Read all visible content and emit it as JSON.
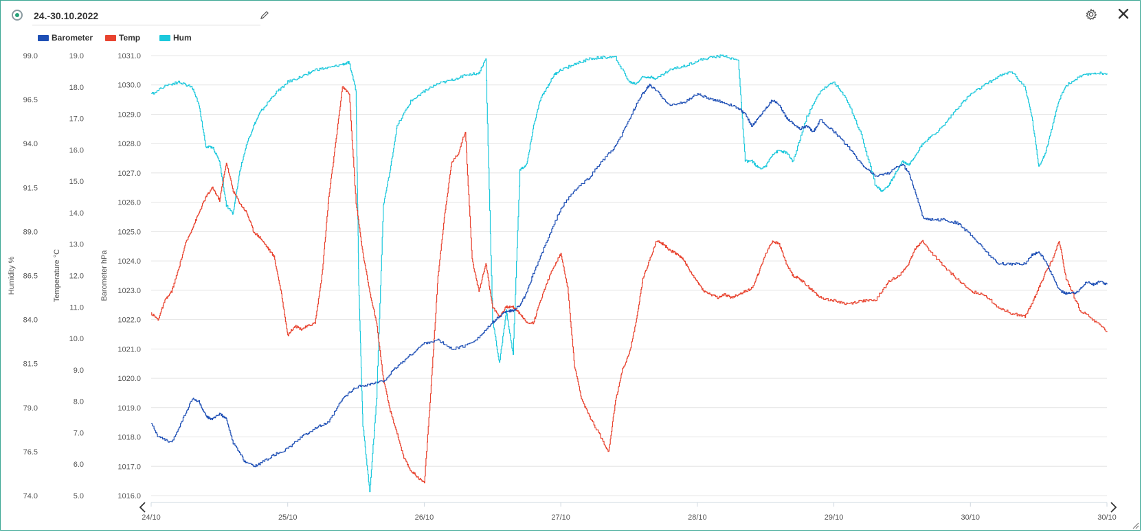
{
  "header": {
    "date_range": "24.-30.10.2022"
  },
  "icons": {
    "status": "status-dot-icon",
    "edit": "pencil-icon",
    "settings": "gear-icon",
    "close": "close-icon",
    "prev": "chevron-left-icon",
    "next": "chevron-right-icon",
    "resize": "resize-handle-icon"
  },
  "colors": {
    "frame": "#3aa693",
    "status_dot": "#27a37a",
    "barometer": "#1e4fb5",
    "temp": "#e8432f",
    "hum": "#1cc8dc",
    "grid": "#e4e4e4"
  },
  "chart_data": {
    "type": "line",
    "legend": [
      "Barometer",
      "Temp",
      "Hum"
    ],
    "legend_position": "top-left",
    "grid": true,
    "x_ticks": [
      "24/10",
      "25/10",
      "26/10",
      "27/10",
      "28/10",
      "29/10",
      "30/10",
      "30/10"
    ],
    "x_range_days": [
      0,
      7
    ],
    "axes": [
      {
        "id": "hum",
        "label": "Humidity %",
        "ylim": [
          74.0,
          99.0
        ],
        "ticks": [
          "74.0",
          "76.5",
          "79.0",
          "81.5",
          "84.0",
          "86.5",
          "89.0",
          "91.5",
          "94.0",
          "96.5",
          "99.0"
        ]
      },
      {
        "id": "temp",
        "label": "Temperature °C",
        "ylim": [
          5.0,
          19.0
        ],
        "ticks": [
          "5.0",
          "6.0",
          "7.0",
          "8.0",
          "9.0",
          "10.0",
          "11.0",
          "12.0",
          "13.0",
          "14.0",
          "15.0",
          "16.0",
          "17.0",
          "18.0",
          "19.0"
        ]
      },
      {
        "id": "baro",
        "label": "Barometer hPa",
        "ylim": [
          1016.0,
          1031.0
        ],
        "ticks": [
          "1016.0",
          "1017.0",
          "1018.0",
          "1019.0",
          "1020.0",
          "1021.0",
          "1022.0",
          "1023.0",
          "1024.0",
          "1025.0",
          "1026.0",
          "1027.0",
          "1028.0",
          "1029.0",
          "1030.0",
          "1031.0"
        ]
      }
    ],
    "series": [
      {
        "name": "Barometer",
        "axis": "baro",
        "x": [
          0,
          0.05,
          0.15,
          0.22,
          0.3,
          0.35,
          0.4,
          0.45,
          0.5,
          0.55,
          0.6,
          0.68,
          0.75,
          0.8,
          0.9,
          1.0,
          1.1,
          1.2,
          1.3,
          1.4,
          1.5,
          1.6,
          1.7,
          1.8,
          1.9,
          2.0,
          2.1,
          2.2,
          2.3,
          2.4,
          2.5,
          2.55,
          2.6,
          2.65,
          2.7,
          2.75,
          2.8,
          2.9,
          3.0,
          3.1,
          3.2,
          3.3,
          3.4,
          3.5,
          3.55,
          3.6,
          3.65,
          3.7,
          3.8,
          3.9,
          4.0,
          4.1,
          4.2,
          4.3,
          4.35,
          4.4,
          4.45,
          4.5,
          4.55,
          4.6,
          4.65,
          4.7,
          4.75,
          4.8,
          4.85,
          4.9,
          5.0,
          5.1,
          5.2,
          5.3,
          5.4,
          5.5,
          5.55,
          5.6,
          5.65,
          5.7,
          5.8,
          5.9,
          6.0,
          6.1,
          6.2,
          6.3,
          6.4,
          6.45,
          6.5,
          6.55,
          6.6,
          6.65,
          6.7,
          6.75,
          6.8,
          6.85,
          6.9,
          6.95,
          7.0
        ],
        "values": [
          1018.5,
          1018.0,
          1017.8,
          1018.5,
          1019.3,
          1019.2,
          1018.7,
          1018.6,
          1018.8,
          1018.6,
          1017.8,
          1017.2,
          1017.0,
          1017.1,
          1017.4,
          1017.6,
          1018.0,
          1018.3,
          1018.5,
          1019.3,
          1019.7,
          1019.8,
          1019.9,
          1020.4,
          1020.8,
          1021.2,
          1021.3,
          1021.0,
          1021.1,
          1021.4,
          1021.9,
          1022.1,
          1022.3,
          1022.3,
          1022.5,
          1022.9,
          1023.6,
          1024.7,
          1025.8,
          1026.4,
          1026.8,
          1027.4,
          1027.9,
          1028.8,
          1029.3,
          1029.7,
          1030.0,
          1029.8,
          1029.3,
          1029.4,
          1029.7,
          1029.5,
          1029.4,
          1029.2,
          1029.0,
          1028.6,
          1028.9,
          1029.2,
          1029.5,
          1029.3,
          1028.9,
          1028.7,
          1028.5,
          1028.6,
          1028.4,
          1028.8,
          1028.4,
          1027.9,
          1027.3,
          1026.9,
          1027.0,
          1027.3,
          1027.0,
          1026.3,
          1025.5,
          1025.4,
          1025.4,
          1025.3,
          1024.9,
          1024.4,
          1023.9,
          1023.9,
          1023.9,
          1024.2,
          1024.3,
          1024.0,
          1023.5,
          1023.0,
          1022.9,
          1022.9,
          1023.0,
          1023.3,
          1023.2,
          1023.3,
          1023.2
        ]
      },
      {
        "name": "Temp",
        "axis": "temp",
        "x": [
          0,
          0.05,
          0.1,
          0.15,
          0.2,
          0.25,
          0.3,
          0.35,
          0.4,
          0.45,
          0.5,
          0.55,
          0.6,
          0.65,
          0.7,
          0.75,
          0.8,
          0.85,
          0.9,
          0.95,
          1.0,
          1.05,
          1.1,
          1.15,
          1.2,
          1.25,
          1.3,
          1.35,
          1.4,
          1.45,
          1.5,
          1.55,
          1.6,
          1.65,
          1.7,
          1.75,
          1.8,
          1.85,
          1.9,
          1.95,
          2.0,
          2.05,
          2.1,
          2.15,
          2.2,
          2.25,
          2.3,
          2.35,
          2.4,
          2.45,
          2.5,
          2.55,
          2.6,
          2.65,
          2.7,
          2.75,
          2.8,
          2.85,
          2.9,
          2.95,
          3.0,
          3.05,
          3.1,
          3.15,
          3.2,
          3.3,
          3.35,
          3.4,
          3.45,
          3.5,
          3.55,
          3.6,
          3.65,
          3.7,
          3.75,
          3.8,
          3.85,
          3.9,
          3.95,
          4.0,
          4.05,
          4.1,
          4.15,
          4.2,
          4.25,
          4.3,
          4.35,
          4.4,
          4.45,
          4.5,
          4.55,
          4.6,
          4.65,
          4.7,
          4.75,
          4.8,
          4.85,
          4.9,
          5.0,
          5.1,
          5.2,
          5.3,
          5.4,
          5.5,
          5.55,
          5.6,
          5.65,
          5.7,
          5.8,
          5.9,
          6.0,
          6.1,
          6.2,
          6.3,
          6.4,
          6.45,
          6.5,
          6.55,
          6.6,
          6.65,
          6.7,
          6.8,
          6.9,
          7.0
        ],
        "values": [
          10.8,
          10.6,
          11.2,
          11.5,
          12.2,
          13.0,
          13.5,
          14.0,
          14.5,
          14.8,
          14.4,
          15.6,
          14.7,
          14.3,
          14.0,
          13.4,
          13.2,
          12.9,
          12.6,
          11.5,
          10.1,
          10.4,
          10.3,
          10.4,
          10.5,
          12.0,
          14.5,
          16.2,
          18.0,
          17.8,
          14.3,
          12.7,
          11.5,
          10.5,
          8.7,
          7.7,
          7.0,
          6.2,
          5.8,
          5.6,
          5.4,
          8.5,
          12.0,
          14.0,
          15.6,
          15.9,
          16.6,
          12.5,
          11.5,
          12.4,
          11.0,
          10.7,
          11.0,
          11.0,
          10.8,
          10.5,
          10.5,
          11.2,
          11.8,
          12.3,
          12.7,
          11.6,
          9.1,
          8.1,
          7.6,
          6.8,
          6.4,
          8.0,
          9.0,
          9.5,
          10.5,
          11.9,
          12.5,
          13.1,
          13.0,
          12.8,
          12.7,
          12.5,
          12.1,
          11.8,
          11.5,
          11.4,
          11.3,
          11.4,
          11.3,
          11.4,
          11.5,
          11.6,
          12.1,
          12.7,
          13.1,
          13.0,
          12.4,
          12.0,
          11.9,
          11.7,
          11.5,
          11.3,
          11.2,
          11.1,
          11.2,
          11.2,
          11.8,
          12.1,
          12.4,
          12.9,
          13.1,
          12.8,
          12.3,
          11.9,
          11.5,
          11.4,
          11.0,
          10.8,
          10.7,
          11.1,
          11.6,
          12.1,
          12.5,
          13.1,
          11.9,
          10.9,
          10.6,
          10.2
        ]
      },
      {
        "name": "Hum",
        "axis": "hum",
        "x": [
          0,
          0.1,
          0.2,
          0.3,
          0.35,
          0.4,
          0.45,
          0.5,
          0.55,
          0.6,
          0.62,
          0.65,
          0.7,
          0.75,
          0.8,
          0.9,
          1.0,
          1.1,
          1.2,
          1.3,
          1.4,
          1.45,
          1.5,
          1.52,
          1.55,
          1.6,
          1.65,
          1.7,
          1.75,
          1.8,
          1.9,
          2.0,
          2.1,
          2.2,
          2.3,
          2.4,
          2.45,
          2.5,
          2.55,
          2.6,
          2.65,
          2.7,
          2.75,
          2.8,
          2.85,
          2.9,
          2.95,
          3.0,
          3.1,
          3.2,
          3.3,
          3.4,
          3.5,
          3.55,
          3.6,
          3.65,
          3.7,
          3.8,
          3.9,
          4.0,
          4.1,
          4.2,
          4.3,
          4.35,
          4.4,
          4.45,
          4.5,
          4.55,
          4.6,
          4.65,
          4.7,
          4.8,
          4.9,
          5.0,
          5.1,
          5.2,
          5.3,
          5.35,
          5.4,
          5.45,
          5.5,
          5.55,
          5.6,
          5.65,
          5.7,
          5.8,
          5.9,
          6.0,
          6.1,
          6.2,
          6.3,
          6.4,
          6.45,
          6.5,
          6.55,
          6.6,
          6.65,
          6.7,
          6.8,
          6.9,
          7.0
        ],
        "values": [
          96.8,
          97.3,
          97.5,
          97.2,
          96.2,
          93.8,
          93.8,
          93.0,
          90.5,
          90.0,
          91.0,
          92.5,
          94.0,
          95.0,
          95.8,
          96.8,
          97.5,
          97.8,
          98.2,
          98.3,
          98.5,
          98.6,
          97.0,
          86.0,
          78.0,
          74.2,
          79.5,
          90.5,
          92.5,
          95.0,
          96.4,
          97.0,
          97.4,
          97.6,
          97.9,
          98.0,
          98.8,
          84.0,
          81.5,
          84.5,
          82.0,
          92.5,
          92.8,
          95.0,
          96.5,
          97.2,
          97.9,
          98.2,
          98.5,
          98.8,
          98.9,
          98.9,
          97.5,
          97.4,
          97.8,
          97.8,
          97.7,
          98.2,
          98.4,
          98.7,
          98.9,
          99.0,
          98.7,
          93.0,
          93.0,
          92.6,
          92.7,
          93.4,
          93.6,
          93.5,
          93.0,
          95.5,
          97.0,
          97.5,
          96.4,
          94.5,
          91.7,
          91.3,
          91.6,
          92.3,
          93.0,
          92.8,
          93.4,
          94.0,
          94.3,
          95.0,
          96.0,
          96.8,
          97.3,
          97.8,
          98.1,
          97.2,
          95.5,
          92.7,
          93.5,
          95.0,
          96.5,
          97.3,
          97.8,
          98.0,
          98.0
        ]
      }
    ]
  }
}
